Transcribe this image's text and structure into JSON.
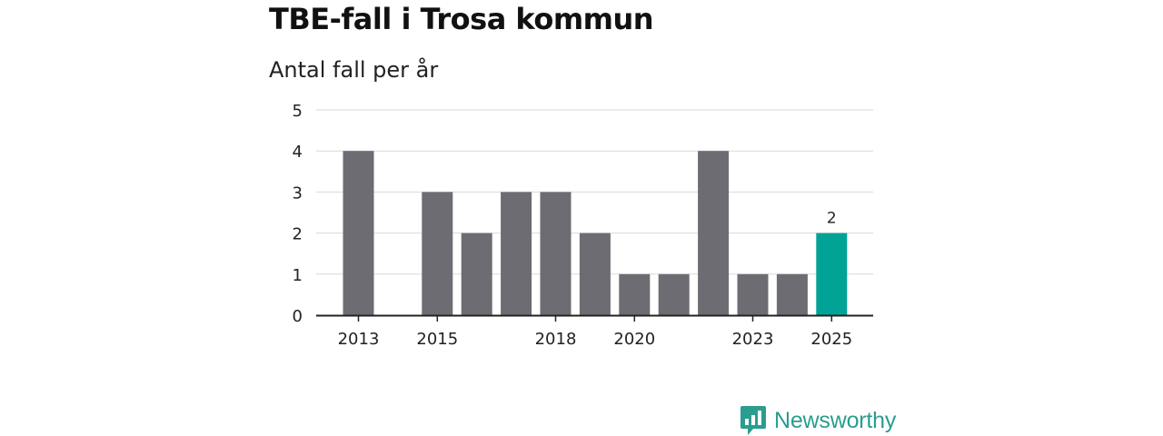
{
  "title": "TBE-fall i Trosa kommun",
  "subtitle": "Antal fall per år",
  "brand": {
    "name": "Newsworthy",
    "color": "#2a9d8f",
    "icon": "bar-chart-speech-icon"
  },
  "colors": {
    "bar": "#6d6c72",
    "highlight": "#00a396",
    "grid": "#d9d9d9",
    "axis": "#222222"
  },
  "chart_data": {
    "type": "bar",
    "title": "TBE-fall i Trosa kommun",
    "subtitle": "Antal fall per år",
    "xlabel": "",
    "ylabel": "",
    "categories": [
      2013,
      2014,
      2015,
      2016,
      2017,
      2018,
      2019,
      2020,
      2021,
      2022,
      2023,
      2024,
      2025
    ],
    "values": [
      4,
      0,
      3,
      2,
      3,
      3,
      2,
      1,
      1,
      4,
      1,
      1,
      2
    ],
    "highlight_index": 12,
    "data_labels": [
      {
        "category": 2025,
        "text": "2"
      }
    ],
    "x_tick_labels": [
      "2013",
      "2015",
      "2018",
      "2020",
      "2023",
      "2025"
    ],
    "y_ticks": [
      0,
      1,
      2,
      3,
      4,
      5
    ],
    "ylim": [
      0,
      5
    ],
    "grid": true
  }
}
